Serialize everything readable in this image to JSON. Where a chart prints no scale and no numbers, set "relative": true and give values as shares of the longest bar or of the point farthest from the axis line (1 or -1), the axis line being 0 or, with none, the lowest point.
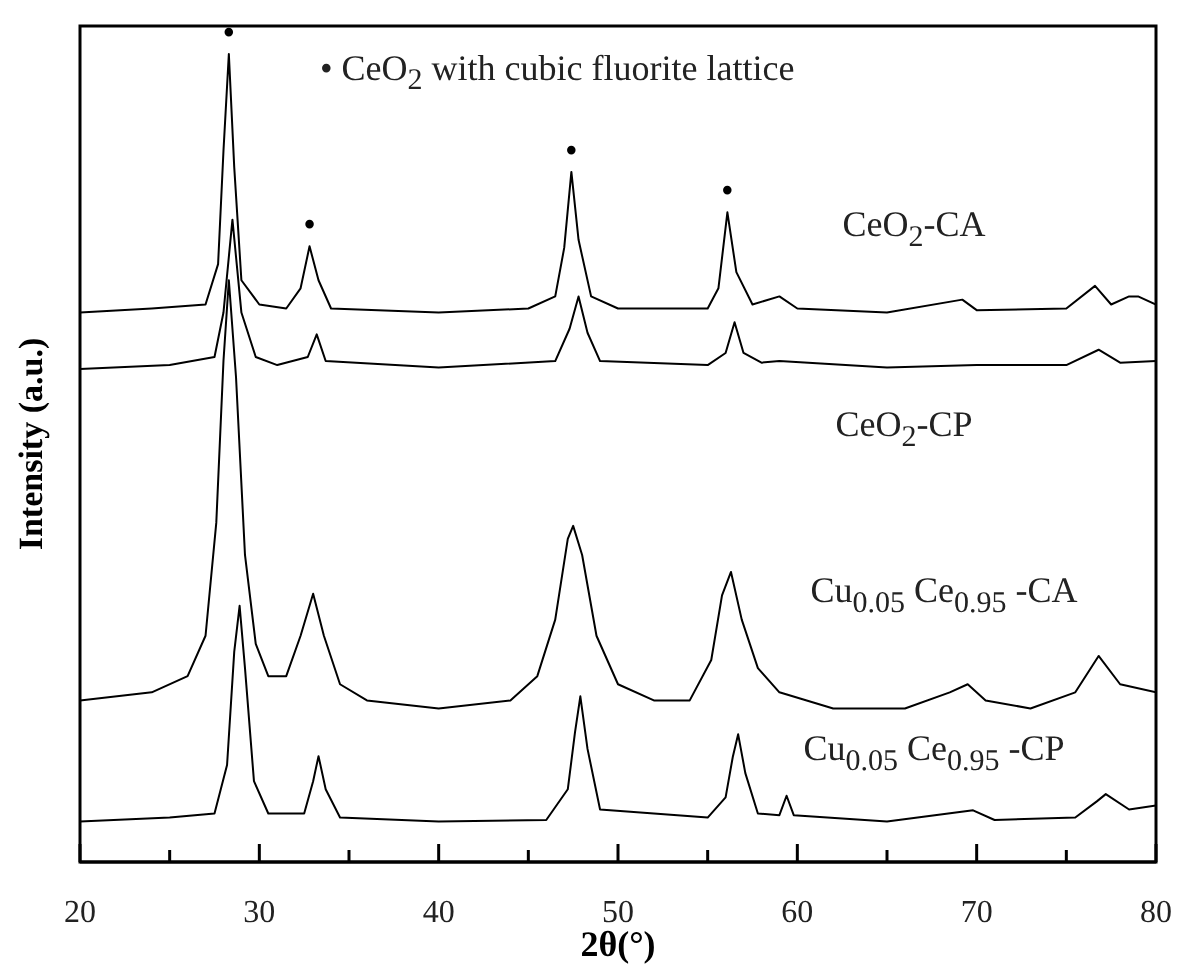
{
  "chart_data": {
    "type": "line",
    "relative": true,
    "xlabel": "2θ(°)",
    "ylabel": "Intensity (a.u.)",
    "xlim": [
      20,
      80
    ],
    "xticks": [
      20,
      {
        "value": 25,
        "label": null
      },
      30,
      {
        "value": 35,
        "label": null
      },
      40,
      {
        "value": 45,
        "label": null
      },
      50,
      {
        "value": 55,
        "label": null
      },
      60,
      {
        "value": 65,
        "label": null
      },
      70,
      {
        "value": 75,
        "label": null
      },
      80
    ],
    "series": [
      {
        "name": "CeO$_{2}$-CA",
        "color": "#000000",
        "x": [
          20,
          24,
          27,
          27.7,
          28,
          28.3,
          28.6,
          29,
          30,
          31.5,
          32.3,
          32.8,
          33.3,
          34,
          40,
          45,
          46.5,
          47,
          47.4,
          47.8,
          48.5,
          50,
          55,
          55.6,
          56.1,
          56.6,
          57.5,
          59,
          60,
          65,
          69.2,
          70,
          75,
          76.6,
          77.5,
          78.5,
          79,
          80
        ],
        "values": [
          0.68,
          0.685,
          0.69,
          0.74,
          0.88,
          1,
          0.86,
          0.72,
          0.69,
          0.685,
          0.71,
          0.762,
          0.72,
          0.685,
          0.68,
          0.685,
          0.7,
          0.76,
          0.854,
          0.77,
          0.7,
          0.685,
          0.685,
          0.71,
          0.804,
          0.73,
          0.69,
          0.7,
          0.685,
          0.68,
          0.696,
          0.683,
          0.685,
          0.713,
          0.69,
          0.7,
          0.7,
          0.69
        ]
      },
      {
        "name": "CeO$_{2}$-CP",
        "color": "#000000",
        "x": [
          20,
          25,
          27.5,
          28,
          28.5,
          29,
          29.8,
          31,
          32.7,
          33.2,
          33.7,
          40,
          46.5,
          47.3,
          47.8,
          48.3,
          49,
          55,
          56,
          56.5,
          57,
          58,
          59,
          65,
          70,
          75,
          76.8,
          78,
          80
        ],
        "values": [
          0.61,
          0.615,
          0.625,
          0.68,
          0.795,
          0.68,
          0.625,
          0.615,
          0.625,
          0.653,
          0.62,
          0.612,
          0.62,
          0.66,
          0.7,
          0.655,
          0.62,
          0.615,
          0.63,
          0.668,
          0.63,
          0.618,
          0.62,
          0.612,
          0.615,
          0.615,
          0.634,
          0.618,
          0.62
        ]
      },
      {
        "name": "Cu$_{0.05}$ Ce$_{0.95}$ -CA",
        "color": "#000000",
        "x": [
          20,
          24,
          26,
          27,
          27.6,
          28,
          28.3,
          28.7,
          29.2,
          29.8,
          30.5,
          31.5,
          32.3,
          33,
          33.6,
          34.5,
          36,
          40,
          44,
          45.5,
          46.5,
          47.2,
          47.5,
          48,
          48.8,
          50,
          52,
          54,
          55.2,
          55.8,
          56.3,
          56.9,
          57.8,
          59,
          62,
          66,
          68.5,
          69.5,
          70.5,
          73,
          75.5,
          76.8,
          78,
          80
        ],
        "values": [
          0.2,
          0.21,
          0.23,
          0.28,
          0.42,
          0.62,
          0.72,
          0.6,
          0.38,
          0.27,
          0.23,
          0.23,
          0.28,
          0.332,
          0.28,
          0.22,
          0.2,
          0.19,
          0.2,
          0.23,
          0.3,
          0.4,
          0.416,
          0.38,
          0.28,
          0.22,
          0.2,
          0.2,
          0.25,
          0.33,
          0.359,
          0.3,
          0.24,
          0.21,
          0.19,
          0.19,
          0.21,
          0.22,
          0.2,
          0.19,
          0.21,
          0.255,
          0.22,
          0.21
        ]
      },
      {
        "name": "Cu$_{0.05}$ Ce$_{0.95}$ -CP",
        "color": "#000000",
        "x": [
          20,
          25,
          27.5,
          28.2,
          28.6,
          28.9,
          29.2,
          29.7,
          30.5,
          32.5,
          33,
          33.3,
          33.7,
          34.5,
          40,
          46,
          47.2,
          47.6,
          47.9,
          48.3,
          49,
          55,
          56,
          56.4,
          56.7,
          57.1,
          57.8,
          59,
          59.4,
          59.8,
          65,
          69.8,
          71,
          75.5,
          76.7,
          77.2,
          78.5,
          80
        ],
        "values": [
          0.05,
          0.055,
          0.06,
          0.12,
          0.26,
          0.317,
          0.24,
          0.1,
          0.06,
          0.06,
          0.1,
          0.131,
          0.09,
          0.055,
          0.05,
          0.052,
          0.09,
          0.16,
          0.205,
          0.14,
          0.065,
          0.055,
          0.08,
          0.13,
          0.158,
          0.11,
          0.06,
          0.058,
          0.082,
          0.058,
          0.05,
          0.064,
          0.052,
          0.055,
          0.075,
          0.084,
          0.065,
          0.07
        ]
      }
    ],
    "annotations": [
      "• CeO$_{2}$ with cubic fluorite lattice",
      {
        "text": "•",
        "x": 28.3,
        "y": 1
      },
      {
        "text": "•",
        "x": 32.8,
        "y": 0.762
      },
      {
        "text": "•",
        "x": 47.4,
        "y": 0.854
      },
      {
        "text": "•",
        "x": 56.1,
        "y": 0.804
      }
    ]
  }
}
